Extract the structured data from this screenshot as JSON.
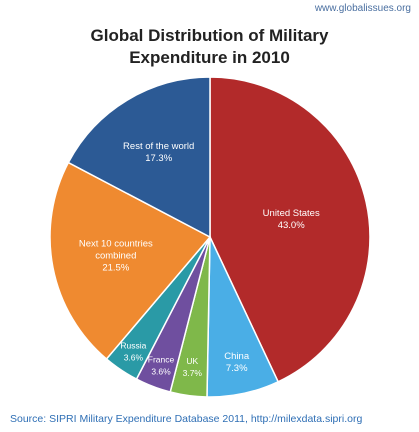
{
  "header": {
    "site_url": "www.globalissues.org",
    "title_line1": "Global Distribution of Military",
    "title_line2": "Expenditure in 2010"
  },
  "footer": {
    "source": "Source: SIPRI Military Expenditure Database 2011, http://milexdata.sipri.org"
  },
  "chart_data": {
    "type": "pie",
    "title": "Global Distribution of Military Expenditure in 2010",
    "slices": [
      {
        "label": "United States",
        "value": 43.0,
        "display": "43.0%",
        "color": "#b22a2a"
      },
      {
        "label": "China",
        "value": 7.3,
        "display": "7.3%",
        "color": "#4aaee6"
      },
      {
        "label": "UK",
        "value": 3.7,
        "display": "3.7%",
        "color": "#7fb84a"
      },
      {
        "label": "France",
        "value": 3.6,
        "display": "3.6%",
        "color": "#6f4f9f"
      },
      {
        "label": "Russia",
        "value": 3.6,
        "display": "3.6%",
        "color": "#2a9aa6"
      },
      {
        "label": "Next 10 countries combined",
        "value": 21.5,
        "display": "21.5%",
        "color": "#ef8a30"
      },
      {
        "label": "Rest of the world",
        "value": 17.3,
        "display": "17.3%",
        "color": "#2c5a95"
      }
    ],
    "start_angle": "top",
    "direction": "clockwise",
    "legend": "none"
  }
}
